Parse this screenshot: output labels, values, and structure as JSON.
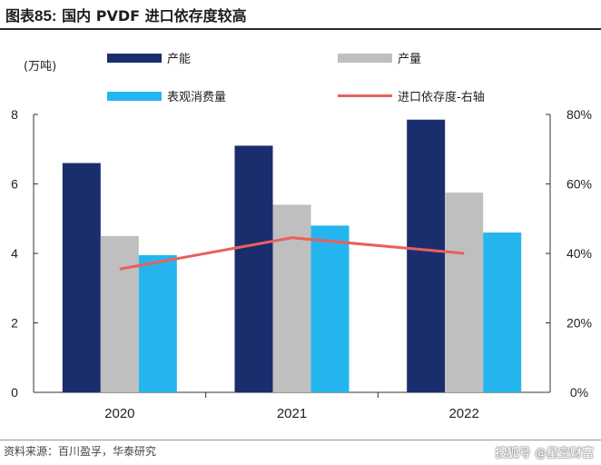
{
  "title": {
    "prefix": "图表",
    "number": "85:",
    "text": "国内 PVDF 进口依存度较高"
  },
  "unit_label": "(万吨)",
  "legend": [
    {
      "label": "产能",
      "color": "#1a2e6e",
      "kind": "bar"
    },
    {
      "label": "产量",
      "color": "#bfbfbf",
      "kind": "bar"
    },
    {
      "label": "表观消费量",
      "color": "#25b5ee",
      "kind": "bar"
    },
    {
      "label": "进口依存度-右轴",
      "color": "#e8605a",
      "kind": "line"
    }
  ],
  "source": "资料来源：百川盈孚，华泰研究",
  "watermark": "搜狐号 @星空财富",
  "chart_data": {
    "type": "bar",
    "categories": [
      "2020",
      "2021",
      "2022"
    ],
    "series": [
      {
        "name": "产能",
        "values": [
          6.6,
          7.1,
          7.85
        ],
        "color": "#1a2e6e",
        "axis": "left"
      },
      {
        "name": "产量",
        "values": [
          4.5,
          5.4,
          5.75
        ],
        "color": "#bfbfbf",
        "axis": "left"
      },
      {
        "name": "表观消费量",
        "values": [
          3.95,
          4.8,
          4.6
        ],
        "color": "#25b5ee",
        "axis": "left"
      },
      {
        "name": "进口依存度-右轴",
        "values": [
          0.355,
          0.445,
          0.4
        ],
        "color": "#e8605a",
        "axis": "right",
        "type": "line"
      }
    ],
    "ylim": [
      0,
      8
    ],
    "y_ticks": [
      "0",
      "2",
      "4",
      "6",
      "8"
    ],
    "y2lim": [
      0,
      0.8
    ],
    "y2_ticks": [
      "0%",
      "20%",
      "40%",
      "60%",
      "80%"
    ],
    "xlabel": "",
    "ylabel": "(万吨)",
    "grid": false,
    "legend_position": "top"
  }
}
